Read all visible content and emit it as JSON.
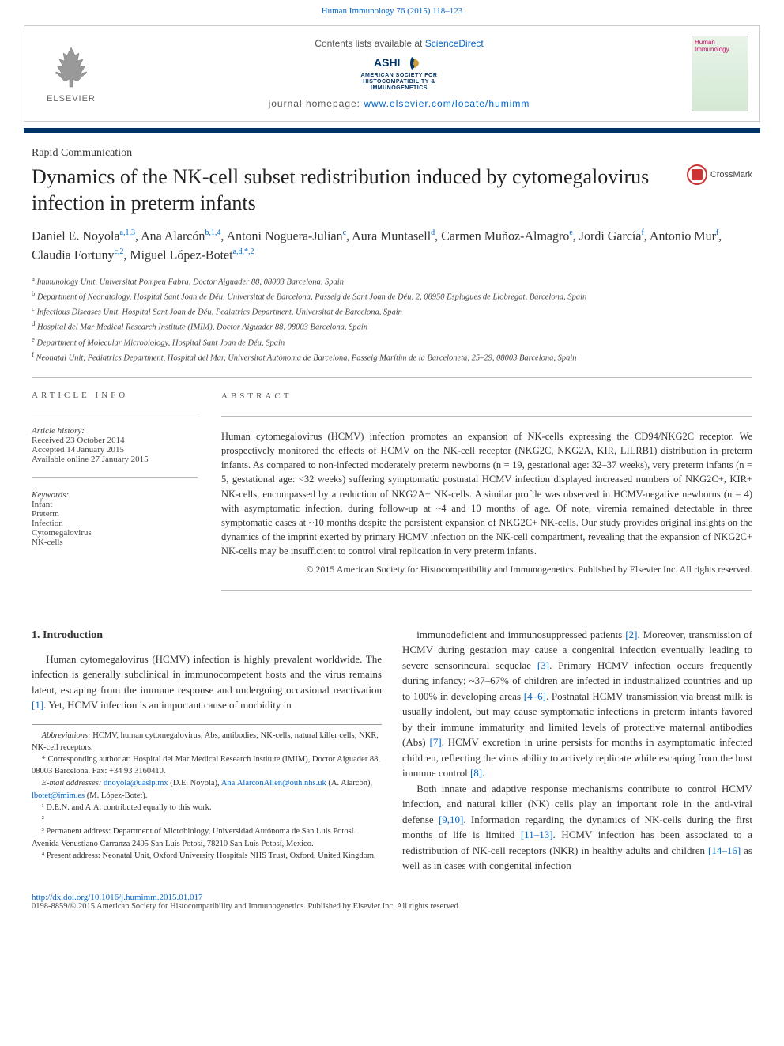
{
  "top_citation": "Human Immunology 76 (2015) 118–123",
  "header": {
    "contents_prefix": "Contents lists available at ",
    "contents_link": "ScienceDirect",
    "ashi_lines": [
      "AMERICAN SOCIETY FOR",
      "HISTOCOMPATIBILITY &",
      "IMMUNOGENETICS"
    ],
    "homepage_prefix": "journal homepage: ",
    "homepage_url": "www.elsevier.com/locate/humimm",
    "elsevier_label": "ELSEVIER",
    "cover_title": "Human Immunology"
  },
  "article": {
    "type": "Rapid Communication",
    "title": "Dynamics of the NK-cell subset redistribution induced by cytomegalovirus infection in preterm infants",
    "crossmark": "CrossMark",
    "authors_html_parts": [
      {
        "name": "Daniel E. Noyola",
        "sup": "a,1,3"
      },
      {
        "name": "Ana Alarcón",
        "sup": "b,1,4"
      },
      {
        "name": "Antoni Noguera-Julian",
        "sup": "c"
      },
      {
        "name": "Aura Muntasell",
        "sup": "d"
      },
      {
        "name": "Carmen Muñoz-Almagro",
        "sup": "e"
      },
      {
        "name": "Jordi García",
        "sup": "f"
      },
      {
        "name": "Antonio Mur",
        "sup": "f"
      },
      {
        "name": "Claudia Fortuny",
        "sup": "c,2"
      },
      {
        "name": "Miguel López-Botet",
        "sup": "a,d,*,2"
      }
    ],
    "affiliations": [
      {
        "key": "a",
        "text": "Immunology Unit, Universitat Pompeu Fabra, Doctor Aiguader 88, 08003 Barcelona, Spain"
      },
      {
        "key": "b",
        "text": "Department of Neonatology, Hospital Sant Joan de Déu, Universitat de Barcelona, Passeig de Sant Joan de Déu, 2, 08950 Esplugues de Llobregat, Barcelona, Spain"
      },
      {
        "key": "c",
        "text": "Infectious Diseases Unit, Hospital Sant Joan de Déu, Pediatrics Department, Universitat de Barcelona, Spain"
      },
      {
        "key": "d",
        "text": "Hospital del Mar Medical Research Institute (IMIM), Doctor Aiguader 88, 08003 Barcelona, Spain"
      },
      {
        "key": "e",
        "text": "Department of Molecular Microbiology, Hospital Sant Joan de Déu, Spain"
      },
      {
        "key": "f",
        "text": "Neonatal Unit, Pediatrics Department, Hospital del Mar, Universitat Autònoma de Barcelona, Passeig Marítim de la Barceloneta, 25–29, 08003 Barcelona, Spain"
      }
    ]
  },
  "article_info": {
    "heading": "ARTICLE INFO",
    "history_label": "Article history:",
    "history": [
      "Received 23 October 2014",
      "Accepted 14 January 2015",
      "Available online 27 January 2015"
    ],
    "keywords_label": "Keywords:",
    "keywords": [
      "Infant",
      "Preterm",
      "Infection",
      "Cytomegalovirus",
      "NK-cells"
    ]
  },
  "abstract": {
    "heading": "ABSTRACT",
    "text": "Human cytomegalovirus (HCMV) infection promotes an expansion of NK-cells expressing the CD94/NKG2C receptor. We prospectively monitored the effects of HCMV on the NK-cell receptor (NKG2C, NKG2A, KIR, LILRB1) distribution in preterm infants. As compared to non-infected moderately preterm newborns (n = 19, gestational age: 32–37 weeks), very preterm infants (n = 5, gestational age: <32 weeks) suffering symptomatic postnatal HCMV infection displayed increased numbers of NKG2C+, KIR+ NK-cells, encompassed by a reduction of NKG2A+ NK-cells. A similar profile was observed in HCMV-negative newborns (n = 4) with asymptomatic infection, during follow-up at ~4 and 10 months of age. Of note, viremia remained detectable in three symptomatic cases at ~10 months despite the persistent expansion of NKG2C+ NK-cells. Our study provides original insights on the dynamics of the imprint exerted by primary HCMV infection on the NK-cell compartment, revealing that the expansion of NKG2C+ NK-cells may be insufficient to control viral replication in very preterm infants.",
    "copyright": "© 2015 American Society for Histocompatibility and Immunogenetics. Published by Elsevier Inc. All rights reserved."
  },
  "body": {
    "section_heading": "1. Introduction",
    "left_para": "Human cytomegalovirus (HCMV) infection is highly prevalent worldwide. The infection is generally subclinical in immunocompetent hosts and the virus remains latent, escaping from the immune response and undergoing occasional reactivation [1]. Yet, HCMV infection is an important cause of morbidity in",
    "right_para1": "immunodeficient and immunosuppressed patients [2]. Moreover, transmission of HCMV during gestation may cause a congenital infection eventually leading to severe sensorineural sequelae [3]. Primary HCMV infection occurs frequently during infancy; ~37–67% of children are infected in industrialized countries and up to 100% in developing areas [4–6]. Postnatal HCMV transmission via breast milk is usually indolent, but may cause symptomatic infections in preterm infants favored by their immune immaturity and limited levels of protective maternal antibodies (Abs) [7]. HCMV excretion in urine persists for months in asymptomatic infected children, reflecting the virus ability to actively replicate while escaping from the host immune control [8].",
    "right_para2": "Both innate and adaptive response mechanisms contribute to control HCMV infection, and natural killer (NK) cells play an important role in the anti-viral defense [9,10]. Information regarding the dynamics of NK-cells during the first months of life is limited [11–13]. HCMV infection has been associated to a redistribution of NK-cell receptors (NKR) in healthy adults and children [14–16] as well as in cases with congenital infection"
  },
  "footnotes": {
    "abbrev_label": "Abbreviations:",
    "abbrev": " HCMV, human cytomegalovirus; Abs, antibodies; NK-cells, natural killer cells; NKR, NK-cell receptors.",
    "corr": "* Corresponding author at: Hospital del Mar Medical Research Institute (IMIM), Doctor Aiguader 88, 08003 Barcelona. Fax: +34 93 3160410.",
    "email_label": "E-mail addresses:",
    "emails": [
      {
        "addr": "dnoyola@uaslp.mx",
        "who": " (D.E. Noyola), "
      },
      {
        "addr": "Ana.AlarconAllen@ouh.nhs.uk",
        "who": " (A. Alarcón), "
      },
      {
        "addr": "lbotet@imim.es",
        "who": " (M. López-Botet)."
      }
    ],
    "note1": "¹ D.E.N. and A.A. contributed equally to this work.",
    "note2": "² ",
    "note3": "³ Permanent address: Department of Microbiology, Universidad Autónoma de San Luis Potosí. Avenida Venustiano Carranza 2405 San Luis Potosí, 78210 San Luis Potosí, Mexico.",
    "note4": "⁴ Present address: Neonatal Unit, Oxford University Hospitals NHS Trust, Oxford, United Kingdom."
  },
  "footer": {
    "doi": "http://dx.doi.org/10.1016/j.humimm.2015.01.017",
    "issn": "0198-8859/© 2015 American Society for Histocompatibility and Immunogenetics. Published by Elsevier Inc. All rights reserved."
  },
  "colors": {
    "link": "#0066cc",
    "rule": "#003366",
    "text": "#333333"
  }
}
